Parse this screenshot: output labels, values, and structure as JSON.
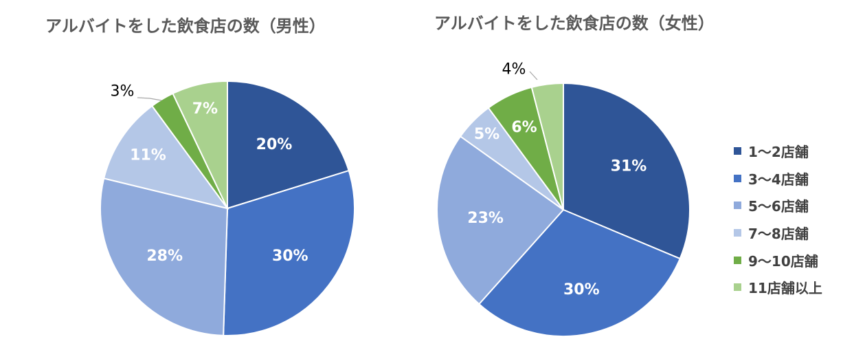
{
  "chart_data": [
    {
      "type": "pie",
      "title": "アルバイトをした飲食店の数（男性）",
      "categories": [
        "1～2店舗",
        "3～4店舗",
        "5～6店舗",
        "7～8店舗",
        "9～10店舗",
        "11店舗以上"
      ],
      "values": [
        20,
        30,
        28,
        11,
        3,
        7
      ],
      "labels": [
        "20%",
        "30%",
        "28%",
        "11%",
        "3%",
        "7%"
      ]
    },
    {
      "type": "pie",
      "title": "アルバイトをした飲食店の数（女性）",
      "categories": [
        "1～2店舗",
        "3～4店舗",
        "5～6店舗",
        "7～8店舗",
        "9～10店舗",
        "11店舗以上"
      ],
      "values": [
        31,
        30,
        23,
        5,
        6,
        4
      ],
      "labels": [
        "31%",
        "30%",
        "23%",
        "5%",
        "6%",
        "4%"
      ]
    }
  ],
  "legend": {
    "position": "right",
    "items": [
      "1～2店舗",
      "3～4店舗",
      "5～6店舗",
      "7～8店舗",
      "9～10店舗",
      "11店舗以上"
    ]
  },
  "colors": [
    "#2f5597",
    "#4472c4",
    "#8faadc",
    "#b4c7e7",
    "#70ad47",
    "#a9d18e"
  ]
}
